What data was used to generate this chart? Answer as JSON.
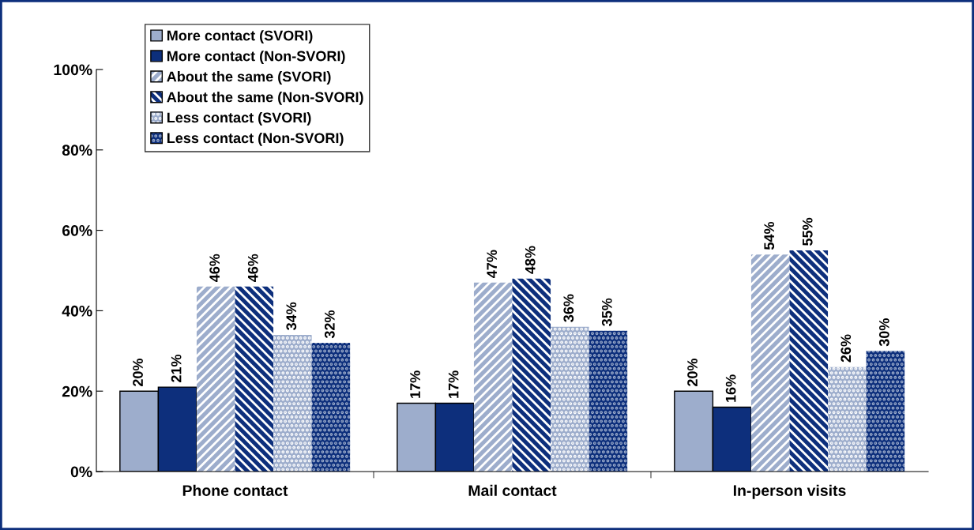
{
  "chart_data": {
    "type": "bar",
    "categories": [
      "Phone contact",
      "Mail contact",
      "In-person visits"
    ],
    "series": [
      {
        "name": "More contact (SVORI)",
        "color": "#9dadcc",
        "values": [
          20,
          17,
          20
        ],
        "value_labels": [
          "20%",
          "17%",
          "20%"
        ]
      },
      {
        "name": "More contact (Non-SVORI)",
        "color": "#0d2f7c",
        "values": [
          21,
          17,
          16
        ],
        "value_labels": [
          "21%",
          "17%",
          "16%"
        ]
      },
      {
        "name": "About the same (SVORI)",
        "color": "#9dadcc",
        "values": [
          46,
          47,
          54
        ],
        "value_labels": [
          "46%",
          "47%",
          "54%"
        ]
      },
      {
        "name": "About the same (Non-SVORI)",
        "color": "#0d2f7c",
        "values": [
          46,
          48,
          55
        ],
        "value_labels": [
          "46%",
          "48%",
          "55%"
        ]
      },
      {
        "name": "Less contact (SVORI)",
        "color": "#9dadcc",
        "values": [
          34,
          36,
          26
        ],
        "value_labels": [
          "34%",
          "36%",
          "26%"
        ]
      },
      {
        "name": "Less contact (Non-SVORI)",
        "color": "#0d2f7c",
        "values": [
          32,
          35,
          30
        ],
        "value_labels": [
          "32%",
          "35%",
          "30%"
        ]
      }
    ],
    "ylim": [
      0,
      100
    ],
    "yticks": [
      {
        "value": 0,
        "label": "0%"
      },
      {
        "value": 20,
        "label": "20%"
      },
      {
        "value": 40,
        "label": "40%"
      },
      {
        "value": 60,
        "label": "60%"
      },
      {
        "value": 80,
        "label": "80%"
      },
      {
        "value": 100,
        "label": "100%"
      }
    ],
    "grid": false,
    "legend": "top left"
  }
}
